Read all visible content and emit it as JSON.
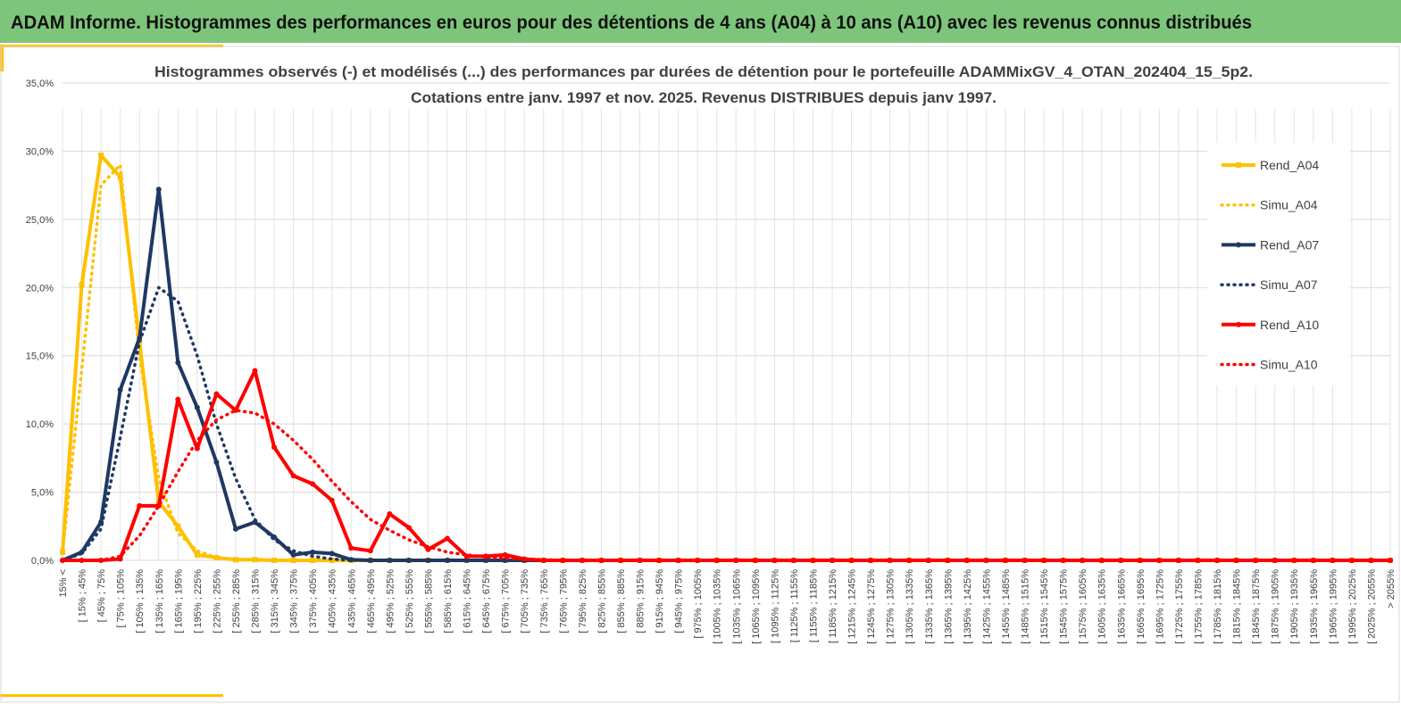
{
  "header": {
    "title": "ADAM Informe. Histogrammes des performances en euros pour des détentions de 4 ans (A04) à 10 ans (A10) avec les revenus connus distribués"
  },
  "chart_data": {
    "type": "line",
    "title": "Histogrammes observés (-) et modélisés (...) des performances par durées de détention pour le portefeuille ADAMMixGV_4_OTAN_202404_15_5p2.",
    "subtitle": "Cotations entre janv. 1997 et nov. 2025. Revenus DISTRIBUES depuis janv 1997.",
    "categories": [
      "15% <",
      "[ 15% ; 45%",
      "[ 45% ; 75%",
      "[ 75% ; 105%",
      "[ 105% ; 135%",
      "[ 135% ; 165%",
      "[ 165% ; 195%",
      "[ 195% ; 225%",
      "[ 225% ; 255%",
      "[ 255% ; 285%",
      "[ 285% ; 315%",
      "[ 315% ; 345%",
      "[ 345% ; 375%",
      "[ 375% ; 405%",
      "[ 405% ; 435%",
      "[ 435% ; 465%",
      "[ 465% ; 495%",
      "[ 495% ; 525%",
      "[ 525% ; 555%",
      "[ 555% ; 585%",
      "[ 585% ; 615%",
      "[ 615% ; 645%",
      "[ 645% ; 675%",
      "[ 675% ; 705%",
      "[ 705% ; 735%",
      "[ 735% ; 765%",
      "[ 765% ; 795%",
      "[ 795% ; 825%",
      "[ 825% ; 855%",
      "[ 855% ; 885%",
      "[ 885% ; 915%",
      "[ 915% ; 945%",
      "[ 945% ; 975%",
      "[ 975% ; 1005%",
      "[ 1005% ; 1035%",
      "[ 1035% ; 1065%",
      "[ 1065% ; 1095%",
      "[ 1095% ; 1125%",
      "[ 1125% ; 1155%",
      "[ 1155% ; 1185%",
      "[ 1185% ; 1215%",
      "[ 1215% ; 1245%",
      "[ 1245% ; 1275%",
      "[ 1275% ; 1305%",
      "[ 1305% ; 1335%",
      "[ 1335% ; 1365%",
      "[ 1365% ; 1395%",
      "[ 1395% ; 1425%",
      "[ 1425% ; 1455%",
      "[ 1455% ; 1485%",
      "[ 1485% ; 1515%",
      "[ 1515% ; 1545%",
      "[ 1545% ; 1575%",
      "[ 1575% ; 1605%",
      "[ 1605% ; 1635%",
      "[ 1635% ; 1665%",
      "[ 1665% ; 1695%",
      "[ 1695% ; 1725%",
      "[ 1725% ; 1755%",
      "[ 1755% ; 1785%",
      "[ 1785% ; 1815%",
      "[ 1815% ; 1845%",
      "[ 1845% ; 1875%",
      "[ 1875% ; 1905%",
      "[ 1905% ; 1935%",
      "[ 1935% ; 1965%",
      "[ 1965% ; 1995%",
      "[ 1995% ; 2025%",
      "[ 2025% ; 2055%",
      "> 2055%"
    ],
    "ylim": [
      0,
      35
    ],
    "yticks": [
      {
        "value": 0,
        "label": "0,0%"
      },
      {
        "value": 5,
        "label": "5,0%"
      },
      {
        "value": 10,
        "label": "10,0%"
      },
      {
        "value": 15,
        "label": "15,0%"
      },
      {
        "value": 20,
        "label": "20,0%"
      },
      {
        "value": 25,
        "label": "25,0%"
      },
      {
        "value": 30,
        "label": "30,0%"
      },
      {
        "value": 35,
        "label": "35,0%"
      }
    ],
    "grid": true,
    "legend": "right",
    "series": [
      {
        "name": "Rend_A04",
        "color": "#FFC000",
        "style": "solid",
        "marker": "square",
        "values": [
          0.6,
          20.2,
          29.7,
          28.1,
          16.0,
          4.3,
          2.5,
          0.4,
          0.2,
          0.05,
          0.05,
          0,
          0,
          0,
          0,
          0,
          0,
          0,
          0,
          0,
          0,
          0,
          0,
          0,
          0,
          0,
          0,
          0,
          0,
          0,
          0,
          0,
          0,
          0,
          0,
          0,
          0,
          0,
          0,
          0,
          0,
          0,
          0,
          0,
          0,
          0,
          0,
          0,
          0,
          0,
          0,
          0,
          0,
          0,
          0,
          0,
          0,
          0,
          0,
          0,
          0,
          0,
          0,
          0,
          0,
          0,
          0,
          0,
          0,
          0
        ]
      },
      {
        "name": "Simu_A04",
        "color": "#FFC000",
        "style": "dotted",
        "marker": "none",
        "values": [
          0.5,
          14,
          27.5,
          29,
          15,
          6,
          2,
          0.7,
          0.2,
          0.05,
          0,
          0,
          0,
          0,
          0,
          0,
          0,
          0,
          0,
          0,
          0,
          0,
          0,
          0,
          0,
          0,
          0,
          0,
          0,
          0,
          0,
          0,
          0,
          0,
          0,
          0,
          0,
          0,
          0,
          0,
          0,
          0,
          0,
          0,
          0,
          0,
          0,
          0,
          0,
          0,
          0,
          0,
          0,
          0,
          0,
          0,
          0,
          0,
          0,
          0,
          0,
          0,
          0,
          0,
          0,
          0,
          0,
          0,
          0,
          0
        ]
      },
      {
        "name": "Rend_A07",
        "color": "#1F3864",
        "style": "solid",
        "marker": "circle",
        "values": [
          0,
          0.6,
          2.8,
          12.5,
          16.3,
          27.2,
          14.5,
          11.2,
          7.2,
          2.3,
          2.8,
          1.7,
          0.4,
          0.6,
          0.5,
          0.05,
          0,
          0,
          0,
          0,
          0,
          0,
          0,
          0,
          0,
          0,
          0,
          0,
          0,
          0,
          0,
          0,
          0,
          0,
          0,
          0,
          0,
          0,
          0,
          0,
          0,
          0,
          0,
          0,
          0,
          0,
          0,
          0,
          0,
          0,
          0,
          0,
          0,
          0,
          0,
          0,
          0,
          0,
          0,
          0,
          0,
          0,
          0,
          0,
          0,
          0,
          0,
          0,
          0,
          0
        ]
      },
      {
        "name": "Simu_A07",
        "color": "#1F3864",
        "style": "dotted",
        "marker": "none",
        "values": [
          0,
          0.5,
          2.3,
          9,
          16,
          20,
          19,
          15,
          10,
          6,
          3,
          1.5,
          0.7,
          0.3,
          0.1,
          0,
          0,
          0,
          0,
          0,
          0,
          0,
          0,
          0,
          0,
          0,
          0,
          0,
          0,
          0,
          0,
          0,
          0,
          0,
          0,
          0,
          0,
          0,
          0,
          0,
          0,
          0,
          0,
          0,
          0,
          0,
          0,
          0,
          0,
          0,
          0,
          0,
          0,
          0,
          0,
          0,
          0,
          0,
          0,
          0,
          0,
          0,
          0,
          0,
          0,
          0,
          0,
          0,
          0,
          0
        ]
      },
      {
        "name": "Rend_A10",
        "color": "#FF0000",
        "style": "solid",
        "marker": "circle",
        "values": [
          0,
          0,
          0,
          0.1,
          4.0,
          4.0,
          11.8,
          8.2,
          12.2,
          11.0,
          13.9,
          8.3,
          6.2,
          5.6,
          4.4,
          0.9,
          0.7,
          3.4,
          2.4,
          0.8,
          1.6,
          0.3,
          0.3,
          0.4,
          0.1,
          0,
          0,
          0,
          0,
          0,
          0,
          0,
          0,
          0,
          0,
          0,
          0,
          0,
          0,
          0,
          0,
          0,
          0,
          0,
          0,
          0,
          0,
          0,
          0,
          0,
          0,
          0,
          0,
          0,
          0,
          0,
          0,
          0,
          0,
          0,
          0,
          0,
          0,
          0,
          0,
          0,
          0,
          0,
          0,
          0
        ]
      },
      {
        "name": "Simu_A10",
        "color": "#FF0000",
        "style": "dotted",
        "marker": "none",
        "values": [
          0,
          0,
          0,
          0.3,
          1.8,
          4,
          6.5,
          8.8,
          10.3,
          11,
          10.8,
          10,
          8.8,
          7.4,
          5.8,
          4.3,
          3,
          2.2,
          1.5,
          1,
          0.6,
          0.4,
          0.25,
          0.15,
          0.1,
          0.05,
          0,
          0,
          0,
          0,
          0,
          0,
          0,
          0,
          0,
          0,
          0,
          0,
          0,
          0,
          0,
          0,
          0,
          0,
          0,
          0,
          0,
          0,
          0,
          0,
          0,
          0,
          0,
          0,
          0,
          0,
          0,
          0,
          0,
          0,
          0,
          0,
          0,
          0,
          0,
          0,
          0,
          0,
          0,
          0
        ]
      }
    ]
  }
}
